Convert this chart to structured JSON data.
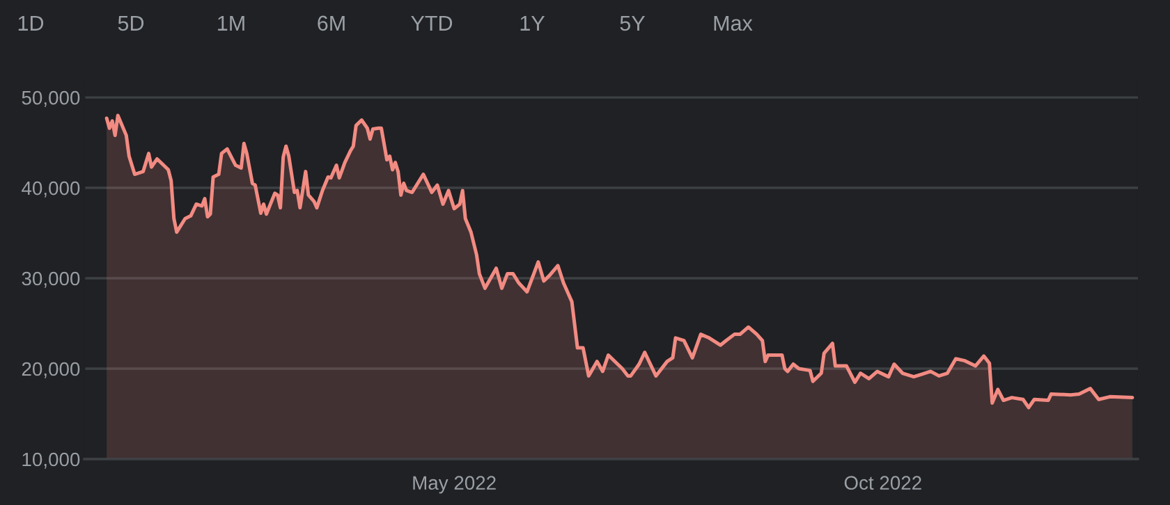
{
  "chart_data": {
    "type": "area",
    "annotations": [
      "1D",
      "5D",
      "1M",
      "6M",
      "YTD",
      "1Y",
      "5Y",
      "Max"
    ],
    "xlim": [
      "2021-12-20",
      "2022-12-31"
    ],
    "xticks": [
      {
        "value": "2022-05-01",
        "label": "May 2022"
      },
      {
        "value": "2022-10-01",
        "label": "Oct 2022"
      }
    ],
    "ylim": [
      10000,
      52000
    ],
    "yticks": [
      {
        "value": 10000,
        "label": "10,000"
      },
      {
        "value": 20000,
        "label": "20,000"
      },
      {
        "value": 30000,
        "label": "30,000"
      },
      {
        "value": 40000,
        "label": "40,000"
      },
      {
        "value": 50000,
        "label": "50,000"
      }
    ],
    "grid": "y",
    "series": [
      {
        "color": "#f28b82",
        "x": [
          "2021-12-28",
          "2021-12-29",
          "2021-12-30",
          "2021-12-31",
          "2022-01-01",
          "2022-01-04",
          "2022-01-05",
          "2022-01-07",
          "2022-01-10",
          "2022-01-12",
          "2022-01-13",
          "2022-01-15",
          "2022-01-17",
          "2022-01-19",
          "2022-01-20",
          "2022-01-21",
          "2022-01-22",
          "2022-01-25",
          "2022-01-27",
          "2022-01-29",
          "2022-01-31",
          "2022-02-01",
          "2022-02-02",
          "2022-02-03",
          "2022-02-04",
          "2022-02-06",
          "2022-02-07",
          "2022-02-09",
          "2022-02-12",
          "2022-02-14",
          "2022-02-15",
          "2022-02-16",
          "2022-02-18",
          "2022-02-19",
          "2022-02-21",
          "2022-02-22",
          "2022-02-23",
          "2022-02-26",
          "2022-02-27",
          "2022-02-28",
          "2022-03-01",
          "2022-03-02",
          "2022-03-03",
          "2022-03-05",
          "2022-03-06",
          "2022-03-07",
          "2022-03-09",
          "2022-03-10",
          "2022-03-12",
          "2022-03-13",
          "2022-03-15",
          "2022-03-17",
          "2022-03-18",
          "2022-03-20",
          "2022-03-21",
          "2022-03-23",
          "2022-03-25",
          "2022-03-26",
          "2022-03-27",
          "2022-03-29",
          "2022-03-31",
          "2022-04-01",
          "2022-04-02",
          "2022-04-04",
          "2022-04-05",
          "2022-04-07",
          "2022-04-08",
          "2022-04-09",
          "2022-04-10",
          "2022-04-11",
          "2022-04-12",
          "2022-04-13",
          "2022-04-14",
          "2022-04-16",
          "2022-04-20",
          "2022-04-23",
          "2022-04-25",
          "2022-04-27",
          "2022-04-29",
          "2022-05-01",
          "2022-05-03",
          "2022-05-04",
          "2022-05-05",
          "2022-05-07",
          "2022-05-09",
          "2022-05-10",
          "2022-05-12",
          "2022-05-16",
          "2022-05-18",
          "2022-05-20",
          "2022-05-22",
          "2022-05-24",
          "2022-05-27",
          "2022-05-31",
          "2022-06-02",
          "2022-06-04",
          "2022-06-07",
          "2022-06-09",
          "2022-06-12",
          "2022-06-14",
          "2022-06-16",
          "2022-06-18",
          "2022-06-21",
          "2022-06-23",
          "2022-06-25",
          "2022-06-30",
          "2022-07-02",
          "2022-07-03",
          "2022-07-06",
          "2022-07-08",
          "2022-07-12",
          "2022-07-16",
          "2022-07-18",
          "2022-07-19",
          "2022-07-22",
          "2022-07-25",
          "2022-07-28",
          "2022-07-31",
          "2022-08-04",
          "2022-08-06",
          "2022-08-09",
          "2022-08-11",
          "2022-08-14",
          "2022-08-17",
          "2022-08-19",
          "2022-08-20",
          "2022-08-21",
          "2022-08-26",
          "2022-08-27",
          "2022-08-28",
          "2022-08-30",
          "2022-09-01",
          "2022-09-05",
          "2022-09-06",
          "2022-09-09",
          "2022-09-10",
          "2022-09-13",
          "2022-09-14",
          "2022-09-18",
          "2022-09-21",
          "2022-09-23",
          "2022-09-26",
          "2022-09-29",
          "2022-10-03",
          "2022-10-05",
          "2022-10-08",
          "2022-10-12",
          "2022-10-15",
          "2022-10-18",
          "2022-10-21",
          "2022-10-24",
          "2022-10-27",
          "2022-10-30",
          "2022-11-03",
          "2022-11-06",
          "2022-11-08",
          "2022-11-09",
          "2022-11-11",
          "2022-11-13",
          "2022-11-16",
          "2022-11-20",
          "2022-11-22",
          "2022-11-24",
          "2022-11-29",
          "2022-11-30",
          "2022-12-07",
          "2022-12-10",
          "2022-12-14",
          "2022-12-17",
          "2022-12-21",
          "2022-12-29"
        ],
        "values": [
          47700,
          46600,
          47400,
          45800,
          48000,
          45800,
          43500,
          41500,
          41800,
          43800,
          42300,
          43200,
          42600,
          42000,
          40800,
          36600,
          35100,
          36600,
          36900,
          38200,
          38000,
          38800,
          36800,
          37100,
          41200,
          41500,
          43800,
          44300,
          42500,
          42200,
          44900,
          43800,
          40500,
          40300,
          37200,
          38200,
          37100,
          39400,
          39200,
          37800,
          43400,
          44600,
          43500,
          39500,
          39700,
          37800,
          41800,
          39200,
          38500,
          37800,
          39700,
          41200,
          41100,
          42500,
          41100,
          42800,
          44100,
          44600,
          46900,
          47500,
          46600,
          45400,
          46500,
          46600,
          46600,
          43100,
          43500,
          42000,
          42800,
          41800,
          39200,
          40500,
          39700,
          39500,
          41500,
          39500,
          40300,
          38200,
          39700,
          37700,
          38200,
          39700,
          36600,
          35100,
          32600,
          30500,
          28900,
          31100,
          28900,
          30500,
          30500,
          29500,
          28500,
          31800,
          29700,
          30300,
          31400,
          29500,
          27400,
          22300,
          22300,
          19200,
          20800,
          19700,
          21500,
          20000,
          19200,
          19200,
          20500,
          21800,
          19200,
          20800,
          21200,
          23400,
          23100,
          21200,
          23800,
          23400,
          22600,
          23100,
          23800,
          23800,
          24600,
          23800,
          23100,
          20800,
          21500,
          21500,
          20000,
          19700,
          20500,
          20000,
          19800,
          18600,
          19500,
          21700,
          22800,
          20300,
          20300,
          18500,
          19500,
          18900,
          19700,
          19100,
          20500,
          19500,
          19100,
          19400,
          19700,
          19200,
          19500,
          21100,
          20900,
          20300,
          21400,
          20600,
          16200,
          17700,
          16500,
          16800,
          16600,
          15700,
          16600,
          16500,
          17200,
          17100,
          17200,
          17800,
          16600,
          16900,
          16800
        ]
      }
    ]
  }
}
